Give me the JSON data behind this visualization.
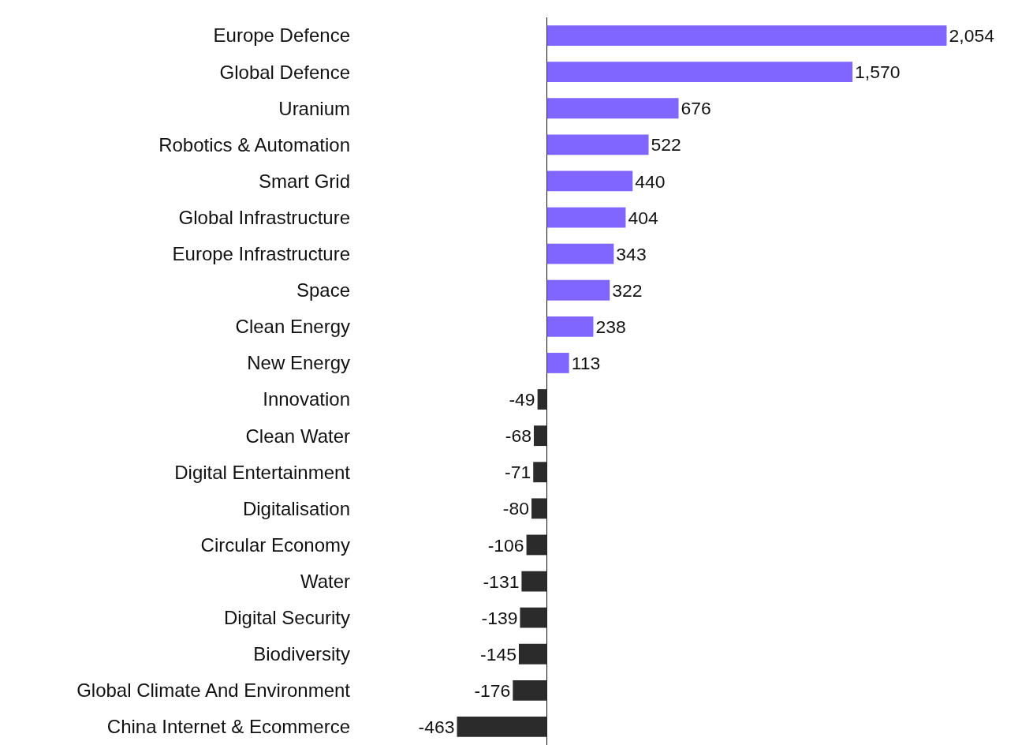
{
  "chart_data": {
    "type": "bar",
    "orientation": "horizontal",
    "categories": [
      "Europe Defence",
      "Global Defence",
      "Uranium",
      "Robotics & Automation",
      "Smart Grid",
      "Global Infrastructure",
      "Europe Infrastructure",
      "Space",
      "Clean Energy",
      "New Energy",
      "Innovation",
      "Clean Water",
      "Digital Entertainment",
      "Digitalisation",
      "Circular Economy",
      "Water",
      "Digital Security",
      "Biodiversity",
      "Global Climate And Environment",
      "China Internet & Ecommerce"
    ],
    "values": [
      2054,
      1570,
      676,
      522,
      440,
      404,
      343,
      322,
      238,
      113,
      -49,
      -68,
      -71,
      -80,
      -106,
      -131,
      -139,
      -145,
      -176,
      -463
    ],
    "value_labels": [
      "2,054",
      "1,570",
      "676",
      "522",
      "440",
      "404",
      "343",
      "322",
      "238",
      "113",
      "-49",
      "-68",
      "-71",
      "-80",
      "-106",
      "-131",
      "-139",
      "-145",
      "-176",
      "-463"
    ],
    "colors": [
      "#8066ff",
      "#8066ff",
      "#8066ff",
      "#8066ff",
      "#8066ff",
      "#8066ff",
      "#8066ff",
      "#8066ff",
      "#8066ff",
      "#8066ff",
      "#2b2b2b",
      "#2b2b2b",
      "#2b2b2b",
      "#2b2b2b",
      "#2b2b2b",
      "#2b2b2b",
      "#2b2b2b",
      "#2b2b2b",
      "#2b2b2b",
      "#2b2b2b"
    ],
    "tick_labels": "y"
  }
}
